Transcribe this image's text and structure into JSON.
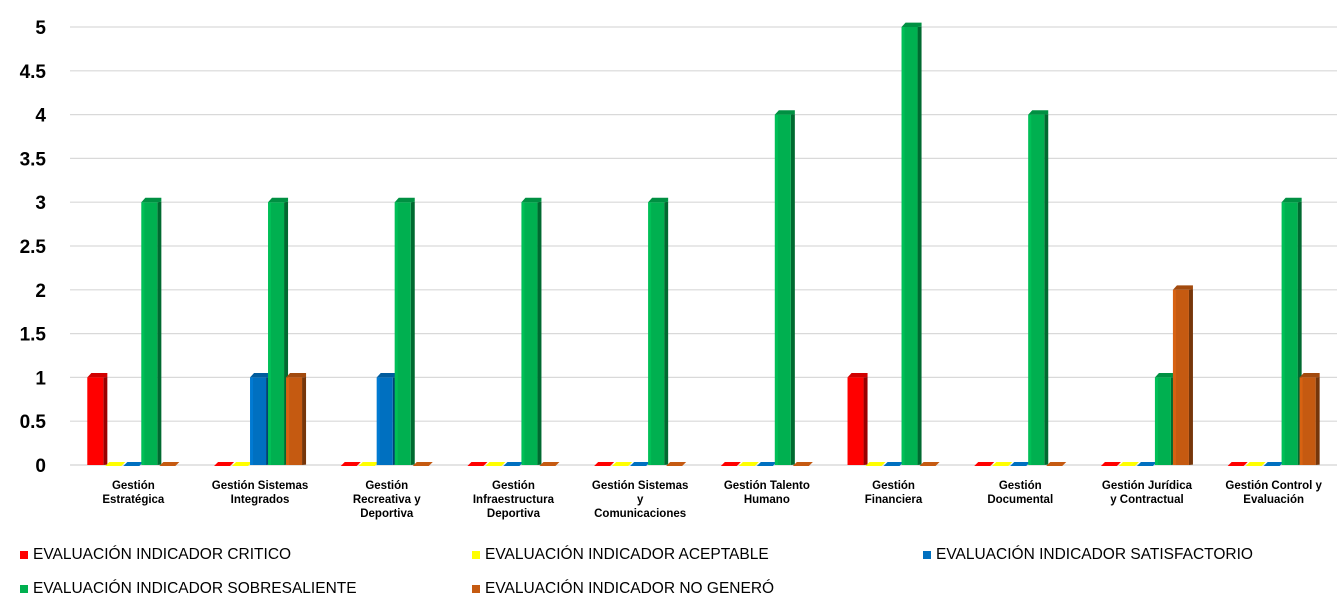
{
  "chart_data": {
    "type": "bar",
    "categories": [
      [
        "Gestión",
        "Estratégica"
      ],
      [
        "Gestión Sistemas",
        "Integrados"
      ],
      [
        "Gestión",
        "Recreativa y",
        "Deportiva"
      ],
      [
        "Gestión",
        "Infraestructura",
        "Deportiva"
      ],
      [
        "Gestión Sistemas",
        "y",
        "Comunicaciones"
      ],
      [
        "Gestión Talento",
        "Humano"
      ],
      [
        "Gestión",
        "Financiera"
      ],
      [
        "Gestión",
        "Documental"
      ],
      [
        "Gestión Jurídica",
        "y Contractual"
      ],
      [
        "Gestión Control y",
        "Evaluación"
      ]
    ],
    "series": [
      {
        "name": "EVALUACIÓN INDICADOR CRITICO",
        "color": "#ff0000",
        "values": [
          1,
          0,
          0,
          0,
          0,
          0,
          1,
          0,
          0,
          0
        ]
      },
      {
        "name": "EVALUACIÓN INDICADOR ACEPTABLE",
        "color": "#ffff00",
        "values": [
          0,
          0,
          0,
          0,
          0,
          0,
          0,
          0,
          0,
          0
        ]
      },
      {
        "name": "EVALUACIÓN INDICADOR SATISFACTORIO",
        "color": "#0070c0",
        "values": [
          0,
          1,
          1,
          0,
          0,
          0,
          0,
          0,
          0,
          0
        ]
      },
      {
        "name": "EVALUACIÓN INDICADOR SOBRESALIENTE",
        "color": "#00b050",
        "values": [
          3,
          3,
          3,
          3,
          3,
          4,
          5,
          4,
          1,
          3
        ]
      },
      {
        "name": "EVALUACIÓN INDICADOR NO GENERÓ",
        "color": "#c55a11",
        "values": [
          0,
          1,
          0,
          0,
          0,
          0,
          0,
          0,
          2,
          1
        ]
      }
    ],
    "ylim": [
      0,
      5
    ],
    "yticks": [
      "0",
      "0.5",
      "1",
      "1.5",
      "2",
      "2.5",
      "3",
      "3.5",
      "4",
      "4.5",
      "5"
    ],
    "grid": true,
    "legend_position": "bottom"
  }
}
